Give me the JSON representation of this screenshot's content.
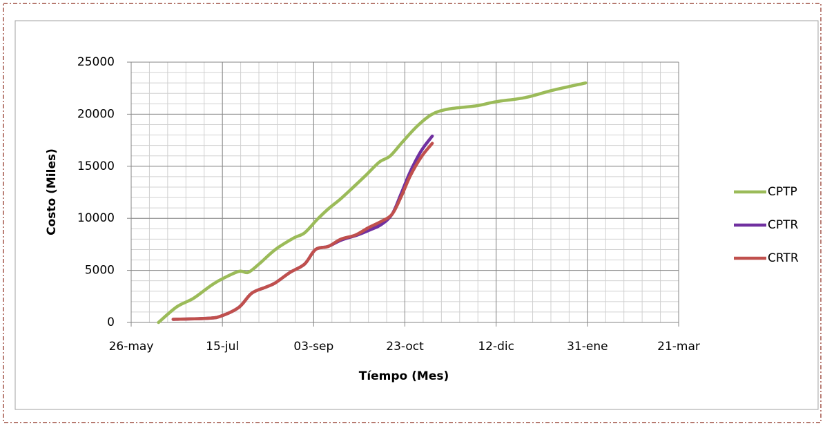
{
  "chart_data": {
    "type": "line",
    "x_label": "Tíempo (Mes)",
    "y_label": "Costo (Miles)",
    "xlim": [
      0,
      300
    ],
    "xticks": [
      {
        "value": 0,
        "label": "26-may"
      },
      {
        "value": 50,
        "label": "15-jul"
      },
      {
        "value": 100,
        "label": "03-sep"
      },
      {
        "value": 150,
        "label": "23-oct"
      },
      {
        "value": 200,
        "label": "12-dic"
      },
      {
        "value": 250,
        "label": "31-ene"
      },
      {
        "value": 300,
        "label": "21-mar"
      }
    ],
    "xminor_ticks": [
      0,
      10,
      20,
      30,
      40,
      50,
      60,
      70,
      80,
      90,
      100,
      110,
      120,
      130,
      140,
      150,
      160,
      170,
      180,
      190,
      200,
      210,
      220,
      230,
      240,
      250,
      260,
      270,
      280,
      290,
      300
    ],
    "ylim": [
      0,
      25000
    ],
    "yticks": [
      0,
      5000,
      10000,
      15000,
      20000,
      25000
    ],
    "yminor_ticks": [
      0,
      1000,
      2000,
      3000,
      4000,
      5000,
      6000,
      7000,
      8000,
      9000,
      10000,
      11000,
      12000,
      13000,
      14000,
      15000,
      16000,
      17000,
      18000,
      19000,
      20000,
      21000,
      22000,
      23000,
      24000,
      25000
    ],
    "grid": true,
    "legend": "right",
    "series": [
      {
        "name": "CPTP",
        "color": "#9bbb59",
        "x": [
          15,
          25,
          34,
          43,
          49,
          59,
          64,
          70,
          79,
          89,
          95,
          102,
          108,
          115,
          123,
          129,
          136,
          142,
          149,
          157,
          165,
          174,
          189,
          200,
          216,
          231,
          249
        ],
        "values": [
          0,
          1500,
          2300,
          3450,
          4100,
          4900,
          4800,
          5600,
          7000,
          8100,
          8600,
          9900,
          10900,
          11900,
          13200,
          14200,
          15400,
          16000,
          17400,
          18900,
          20000,
          20500,
          20800,
          21200,
          21600,
          22300,
          23000
        ]
      },
      {
        "name": "CPTR",
        "color": "#7030a0",
        "x": [
          23,
          42,
          49,
          59,
          66,
          74,
          79,
          87,
          95,
          101,
          108,
          115,
          124,
          131,
          137,
          143,
          148,
          153,
          159,
          165
        ],
        "values": [
          300,
          400,
          600,
          1450,
          2800,
          3400,
          3800,
          4800,
          5600,
          7000,
          7300,
          7900,
          8400,
          8900,
          9400,
          10400,
          12400,
          14500,
          16500,
          17900
        ]
      },
      {
        "name": "CRTR",
        "color": "#c0504d",
        "x": [
          23,
          42,
          49,
          59,
          66,
          74,
          79,
          87,
          95,
          101,
          108,
          115,
          123,
          130,
          137,
          143,
          148,
          153,
          159,
          165
        ],
        "values": [
          300,
          400,
          600,
          1450,
          2800,
          3400,
          3800,
          4800,
          5600,
          7000,
          7300,
          8000,
          8400,
          9100,
          9700,
          10400,
          12100,
          14100,
          15900,
          17200
        ]
      }
    ]
  }
}
